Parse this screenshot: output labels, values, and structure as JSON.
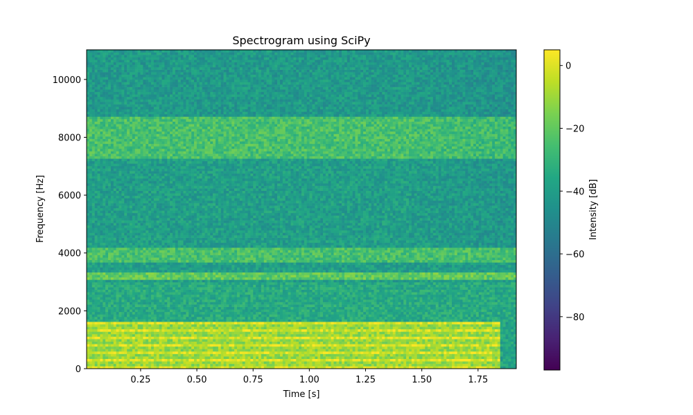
{
  "chart_data": {
    "type": "heatmap",
    "title": "Spectrogram using SciPy",
    "xlabel": "Time [s]",
    "ylabel": "Frequency [Hz]",
    "xlim": [
      0.01,
      1.92
    ],
    "ylim": [
      0,
      11025
    ],
    "x_ticks": [
      {
        "value": 0.25,
        "label": "0.25"
      },
      {
        "value": 0.5,
        "label": "0.50"
      },
      {
        "value": 0.75,
        "label": "0.75"
      },
      {
        "value": 1.0,
        "label": "1.00"
      },
      {
        "value": 1.25,
        "label": "1.25"
      },
      {
        "value": 1.5,
        "label": "1.50"
      },
      {
        "value": 1.75,
        "label": "1.75"
      }
    ],
    "y_ticks": [
      {
        "value": 0,
        "label": "0"
      },
      {
        "value": 2000,
        "label": "2000"
      },
      {
        "value": 4000,
        "label": "4000"
      },
      {
        "value": 6000,
        "label": "6000"
      },
      {
        "value": 8000,
        "label": "8000"
      },
      {
        "value": 10000,
        "label": "10000"
      }
    ],
    "colormap": "viridis",
    "colorbar": {
      "label": "Intensity [dB]",
      "range": [
        -97,
        5
      ],
      "ticks": [
        {
          "value": 0,
          "label": "0"
        },
        {
          "value": -20,
          "label": "−20"
        },
        {
          "value": -40,
          "label": "−40"
        },
        {
          "value": -60,
          "label": "−60"
        },
        {
          "value": -80,
          "label": "−80"
        }
      ]
    },
    "time_bins": 160,
    "frequency_bins": 129,
    "approx_band_intensity_db": [
      {
        "freq_range_hz": [
          0,
          1600
        ],
        "level_db": -5,
        "time_end_s": 1.85
      },
      {
        "freq_range_hz": [
          1600,
          3000
        ],
        "level_db": -35
      },
      {
        "freq_range_hz": [
          3100,
          3350
        ],
        "level_db": -20
      },
      {
        "freq_range_hz": [
          3700,
          4200
        ],
        "level_db": -25
      },
      {
        "freq_range_hz": [
          4200,
          7300
        ],
        "level_db": -40
      },
      {
        "freq_range_hz": [
          7300,
          8700
        ],
        "level_db": -25
      },
      {
        "freq_range_hz": [
          8700,
          11025
        ],
        "level_db": -42
      }
    ]
  }
}
